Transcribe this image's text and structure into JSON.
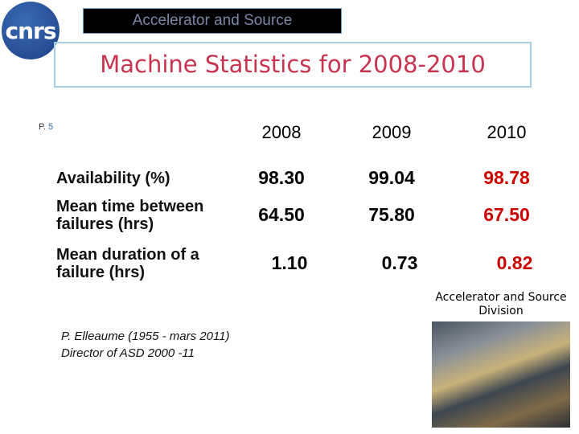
{
  "logo": {
    "text": "cnrs"
  },
  "header": {
    "banner": "Accelerator and Source",
    "title": "Machine Statistics for 2008-2010",
    "page_prefix": "P.",
    "page_number": "5"
  },
  "table": {
    "columns": [
      "2008",
      "2009",
      "2010"
    ],
    "rows": [
      {
        "label": [
          "Availability (%)"
        ],
        "values": [
          "98.30",
          "99.04",
          "98.78"
        ]
      },
      {
        "label": [
          "Mean time between",
          "failures (hrs)"
        ],
        "values": [
          "64.50",
          "75.80",
          "67.50"
        ]
      },
      {
        "label": [
          "Mean duration of a",
          "failure (hrs)"
        ],
        "values": [
          "1.10",
          "0.73",
          "0.82"
        ]
      }
    ]
  },
  "division": [
    "Accelerator and Source",
    "Division"
  ],
  "note": [
    "P. Elleaume (1955 - mars 2011)",
    "Director of ASD 2000 -11"
  ]
}
